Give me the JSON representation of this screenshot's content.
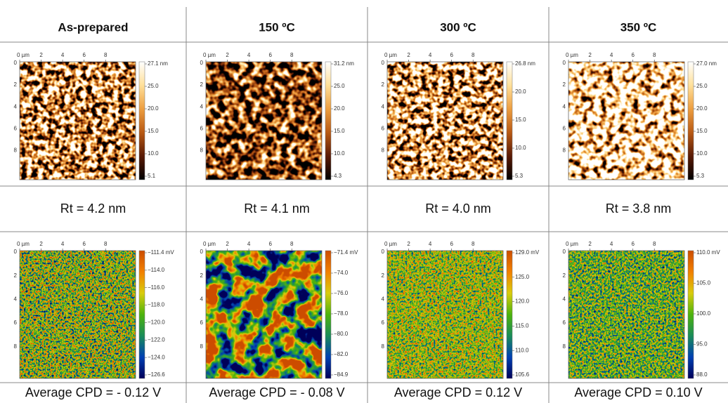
{
  "header": [
    "As-prepared",
    "150 ºC",
    "300 ºC",
    "350 ºC"
  ],
  "axis": {
    "x": [
      "0 µm",
      "2",
      "4",
      "6",
      "8"
    ],
    "y": [
      "0",
      "2",
      "4",
      "6",
      "8"
    ]
  },
  "topography": [
    {
      "colorbar": [
        "27.1 nm",
        "25.0",
        "20.0",
        "15.0",
        "10.0",
        "5.1"
      ]
    },
    {
      "colorbar": [
        "31.2 nm",
        "25.0",
        "20.0",
        "15.0",
        "10.0",
        "4.3"
      ]
    },
    {
      "colorbar": [
        "26.8 nm",
        "20.0",
        "15.0",
        "10.0",
        "5.3"
      ]
    },
    {
      "colorbar": [
        "27.0 nm",
        "25.0",
        "20.0",
        "15.0",
        "10.0",
        "5.3"
      ]
    }
  ],
  "roughness": [
    "Rt = 4.2 nm",
    "Rt = 4.1 nm",
    "Rt = 4.0 nm",
    "Rt = 3.8 nm"
  ],
  "cpd_maps": [
    {
      "colorbar": [
        "−111.4 mV",
        "−114.0",
        "−116.0",
        "−118.0",
        "−120.0",
        "−122.0",
        "−124.0",
        "−126.6"
      ]
    },
    {
      "colorbar": [
        "−71.4 mV",
        "−74.0",
        "−76.0",
        "−78.0",
        "−80.0",
        "−82.0",
        "−84.9"
      ]
    },
    {
      "colorbar": [
        "129.0 mV",
        "125.0",
        "120.0",
        "115.0",
        "110.0",
        "105.6"
      ]
    },
    {
      "colorbar": [
        "110.0 mV",
        "105.0",
        "100.0",
        "95.0",
        "88.0"
      ]
    }
  ],
  "cpd": [
    "Average CPD = - 0.12 V",
    "Average CPD = - 0.08 V",
    "Average CPD = 0.12 V",
    "Average CPD = 0.10 V"
  ]
}
